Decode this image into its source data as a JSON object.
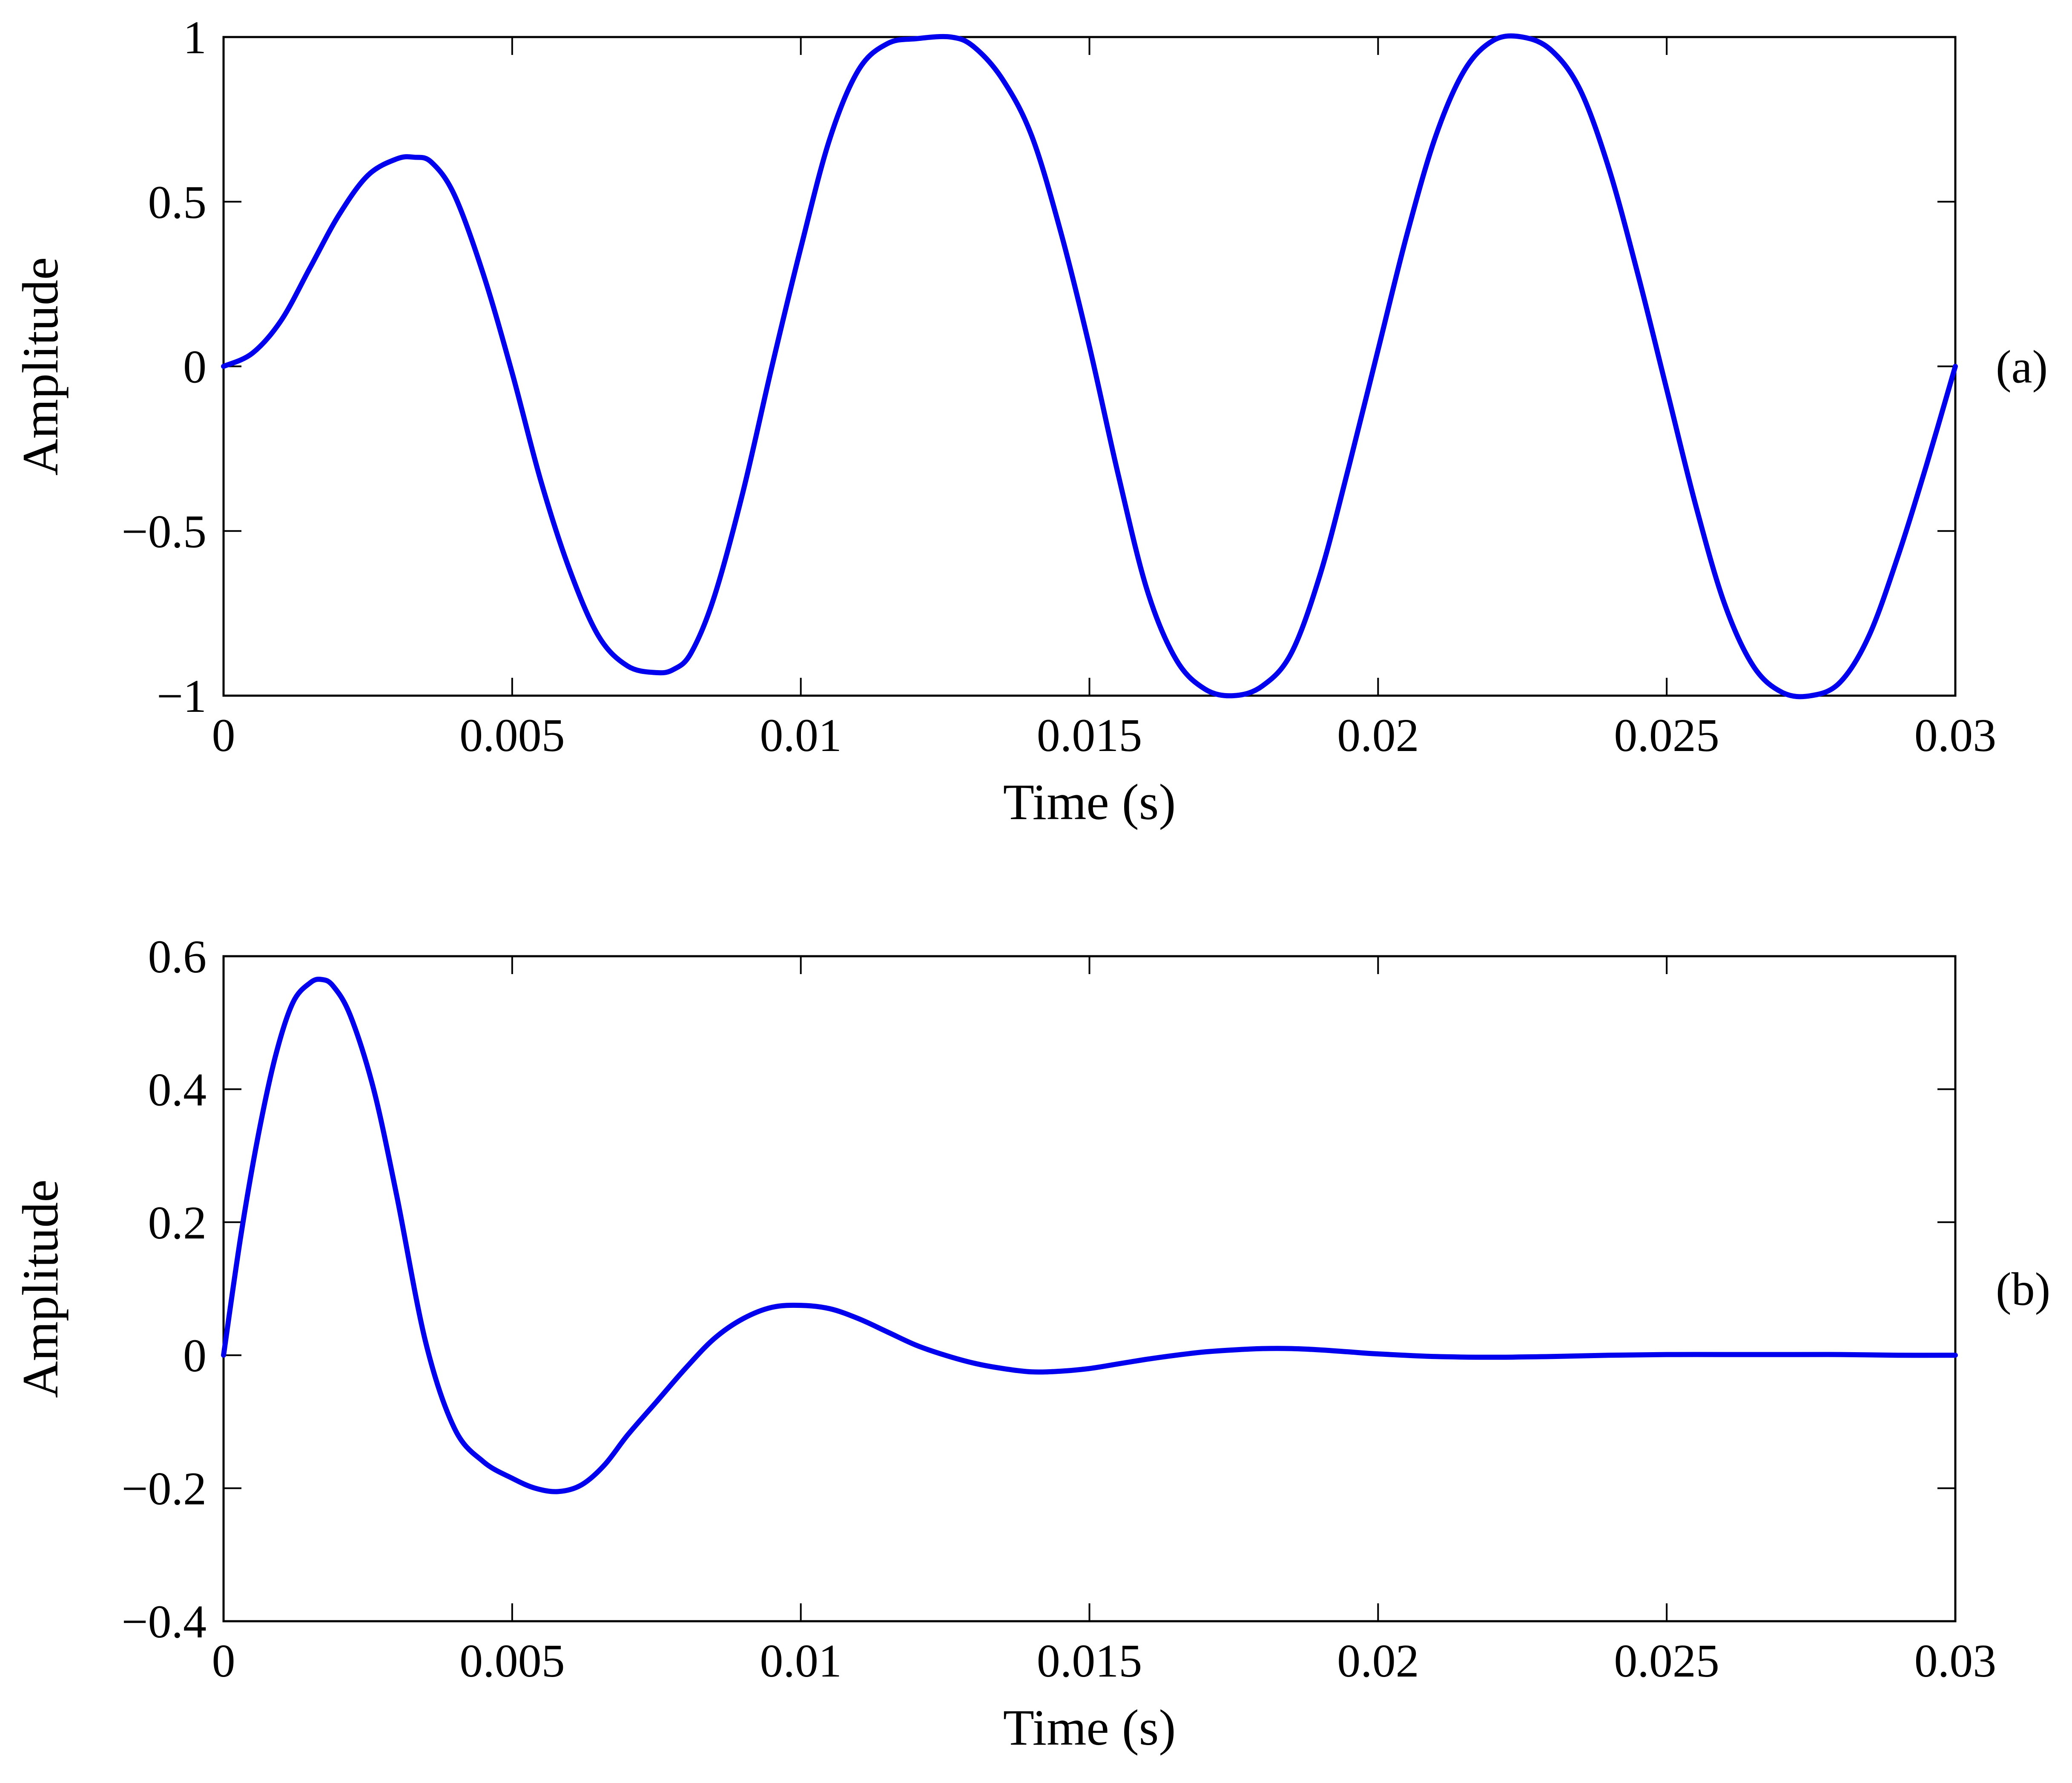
{
  "chart_data": [
    {
      "type": "line",
      "panel_label": "(a)",
      "xlabel": "Time (s)",
      "ylabel": "Amplitude",
      "xlim": [
        0,
        0.03
      ],
      "ylim": [
        -1,
        1
      ],
      "x_ticks": [
        0,
        0.005,
        0.01,
        0.015,
        0.02,
        0.025,
        0.03
      ],
      "x_tick_labels": [
        "0",
        "0.005",
        "0.01",
        "0.015",
        "0.02",
        "0.025",
        "0.03"
      ],
      "y_ticks": [
        -1,
        -0.5,
        0,
        0.5,
        1
      ],
      "y_tick_labels": [
        "−1",
        "−0.5",
        "0",
        "0.5",
        "1"
      ],
      "grid": false,
      "color": "#0000ee",
      "series": [
        {
          "x": [
            0,
            0.0005,
            0.001,
            0.0015,
            0.002,
            0.0025,
            0.003,
            0.0033,
            0.0036,
            0.004,
            0.0045,
            0.005,
            0.0055,
            0.006,
            0.0065,
            0.007,
            0.0075,
            0.0078,
            0.0081,
            0.0085,
            0.009,
            0.0095,
            0.01,
            0.0105,
            0.011,
            0.0115,
            0.012,
            0.0126,
            0.013,
            0.0135,
            0.014,
            0.0145,
            0.015,
            0.0155,
            0.016,
            0.0165,
            0.017,
            0.0175,
            0.018,
            0.0185,
            0.019,
            0.0195,
            0.02,
            0.0205,
            0.021,
            0.0215,
            0.022,
            0.0225,
            0.023,
            0.0235,
            0.024,
            0.0245,
            0.025,
            0.0255,
            0.026,
            0.0265,
            0.027,
            0.0275,
            0.028,
            0.0285,
            0.029,
            0.0295,
            0.03
          ],
          "y": [
            0,
            0.04,
            0.14,
            0.3,
            0.46,
            0.58,
            0.63,
            0.635,
            0.62,
            0.52,
            0.28,
            -0.02,
            -0.35,
            -0.62,
            -0.82,
            -0.91,
            -0.93,
            -0.92,
            -0.87,
            -0.7,
            -0.38,
            0.0,
            0.36,
            0.69,
            0.9,
            0.98,
            0.995,
            1.0,
            0.97,
            0.87,
            0.7,
            0.41,
            0.06,
            -0.33,
            -0.68,
            -0.89,
            -0.98,
            -1.0,
            -0.97,
            -0.87,
            -0.63,
            -0.3,
            0.05,
            0.4,
            0.7,
            0.9,
            0.99,
            1.0,
            0.96,
            0.84,
            0.6,
            0.28,
            -0.07,
            -0.42,
            -0.72,
            -0.91,
            -0.99,
            -1.0,
            -0.96,
            -0.82,
            -0.58,
            -0.3,
            0.0
          ]
        }
      ]
    },
    {
      "type": "line",
      "panel_label": "(b)",
      "xlabel": "Time (s)",
      "ylabel": "Amplitude",
      "xlim": [
        0,
        0.03
      ],
      "ylim": [
        -0.4,
        0.6
      ],
      "x_ticks": [
        0,
        0.005,
        0.01,
        0.015,
        0.02,
        0.025,
        0.03
      ],
      "x_tick_labels": [
        "0",
        "0.005",
        "0.01",
        "0.015",
        "0.02",
        "0.025",
        "0.03"
      ],
      "y_ticks": [
        -0.4,
        -0.2,
        0,
        0.2,
        0.4,
        0.6
      ],
      "y_tick_labels": [
        "−0.4",
        "−0.2",
        "0",
        "0.2",
        "0.4",
        "0.6"
      ],
      "grid": false,
      "color": "#0000ee",
      "series": [
        {
          "x": [
            0,
            0.0003,
            0.0006,
            0.0009,
            0.0012,
            0.0015,
            0.0017,
            0.0019,
            0.0022,
            0.0026,
            0.003,
            0.0035,
            0.004,
            0.0045,
            0.005,
            0.0054,
            0.0058,
            0.0062,
            0.0066,
            0.007,
            0.0075,
            0.008,
            0.0085,
            0.009,
            0.0095,
            0.01,
            0.0105,
            0.011,
            0.0115,
            0.012,
            0.0125,
            0.013,
            0.0135,
            0.014,
            0.0145,
            0.015,
            0.0155,
            0.016,
            0.0165,
            0.017,
            0.0175,
            0.018,
            0.0185,
            0.019,
            0.0195,
            0.02,
            0.021,
            0.022,
            0.023,
            0.024,
            0.025,
            0.026,
            0.027,
            0.028,
            0.029,
            0.03
          ],
          "y": [
            0,
            0.18,
            0.33,
            0.45,
            0.53,
            0.56,
            0.565,
            0.555,
            0.51,
            0.4,
            0.24,
            0.02,
            -0.11,
            -0.16,
            -0.185,
            -0.2,
            -0.205,
            -0.195,
            -0.165,
            -0.12,
            -0.07,
            -0.02,
            0.025,
            0.055,
            0.072,
            0.075,
            0.07,
            0.055,
            0.035,
            0.015,
            0.0,
            -0.012,
            -0.02,
            -0.025,
            -0.024,
            -0.02,
            -0.013,
            -0.006,
            0.0,
            0.005,
            0.008,
            0.01,
            0.01,
            0.008,
            0.005,
            0.002,
            -0.002,
            -0.003,
            -0.002,
            0.0,
            0.001,
            0.001,
            0.001,
            0.001,
            0.0,
            0.0
          ]
        }
      ]
    }
  ]
}
